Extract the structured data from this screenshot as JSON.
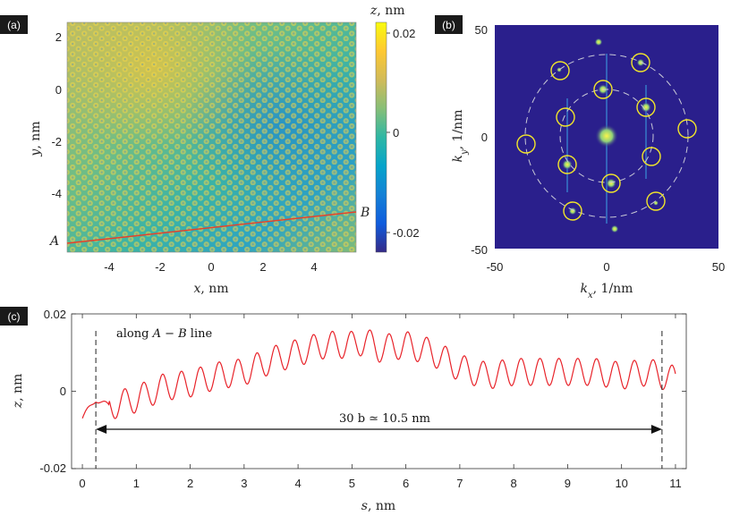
{
  "panels": {
    "a": {
      "tag": "(a)",
      "xlabel_var": "x",
      "xlabel_unit": ", nm",
      "ylabel_var": "y",
      "ylabel_unit": ", nm",
      "xticks": [
        "-4",
        "-2",
        "0",
        "2",
        "4"
      ],
      "yticks": [
        "2",
        "0",
        "-2",
        "-4"
      ],
      "colorbar_title_var": "z",
      "colorbar_title_unit": ", nm",
      "colorbar_ticks": [
        "0.02",
        "0",
        "-0.02"
      ],
      "point_a": "A",
      "point_b": "B",
      "line_color": "#e8402a"
    },
    "b": {
      "tag": "(b)",
      "xlabel_var": "k",
      "xlabel_sub": "x",
      "xlabel_unit": ", 1/nm",
      "ylabel_var": "k",
      "ylabel_sub": "y",
      "ylabel_unit": ", 1/nm",
      "xticks": [
        "-50",
        "0",
        "50"
      ],
      "yticks": [
        "50",
        "0",
        "-50"
      ],
      "background": "#2a1f8c",
      "circle_color": "#f2e62a"
    },
    "c": {
      "tag": "(c)",
      "xlabel_var": "s",
      "xlabel_unit": ", nm",
      "ylabel_var": "z",
      "ylabel_unit": ", nm",
      "xticks": [
        "0",
        "1",
        "2",
        "3",
        "4",
        "5",
        "6",
        "7",
        "8",
        "9",
        "10",
        "11"
      ],
      "yticks": [
        "0.02",
        "0",
        "-0.02"
      ],
      "annotation_prefix": "along ",
      "annotation_line": "A − B",
      "annotation_suffix": " line",
      "span_label": "30 b ≃ 10.5 nm",
      "curve_color": "#e8232a"
    }
  },
  "colormap": [
    "#352a87",
    "#0f5cdd",
    "#1481d6",
    "#06a4ca",
    "#2eb7a4",
    "#87bf77",
    "#d1bb59",
    "#fec832",
    "#f9fb0e"
  ],
  "chart_data": [
    {
      "type": "line",
      "panel": "c",
      "title": "",
      "xlabel": "s, nm",
      "ylabel": "z, nm",
      "xlim": [
        -0.2,
        11.2
      ],
      "ylim": [
        -0.02,
        0.02
      ],
      "markers_x": [
        0.25,
        10.75
      ],
      "series": [
        {
          "x": [
            0.0,
            0.25,
            0.5,
            1.0,
            1.5,
            2.0,
            2.5,
            3.0,
            3.5,
            4.0,
            4.5,
            5.0,
            5.25,
            5.5,
            6.0,
            6.5,
            7.0,
            7.5,
            8.0,
            8.5,
            9.0,
            9.5,
            10.0,
            10.5,
            11.0
          ],
          "y": [
            -0.007,
            -0.002,
            -0.004,
            -0.002,
            0.001,
            0.002,
            0.004,
            0.005,
            0.008,
            0.01,
            0.012,
            0.012,
            0.013,
            0.011,
            0.012,
            0.01,
            0.006,
            0.004,
            0.005,
            0.005,
            0.005,
            0.005,
            0.004,
            0.005,
            0.003
          ]
        }
      ]
    }
  ]
}
